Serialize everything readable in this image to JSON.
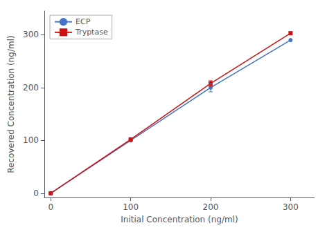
{
  "chart_data": {
    "type": "line",
    "xlabel": "Initial Concentration (ng/ml)",
    "ylabel": "Recovered Concentration (ng/ml)",
    "x": [
      0,
      100,
      200,
      300
    ],
    "series": [
      {
        "name": "ECP",
        "color": "#4472C4",
        "marker": "circle",
        "values": [
          0,
          100,
          200,
          290
        ],
        "yerr": [
          0,
          0,
          8,
          0
        ]
      },
      {
        "name": "Tryptase",
        "color": "#CC1111",
        "marker": "square",
        "values": [
          0,
          102,
          208,
          303
        ],
        "yerr": [
          0,
          0,
          5,
          0
        ]
      }
    ],
    "xlim": [
      -8,
      330
    ],
    "ylim": [
      -8,
      345
    ],
    "xticks": [
      0,
      100,
      200,
      300
    ],
    "yticks": [
      0,
      100,
      200,
      300
    ],
    "grid": false,
    "legend": "upper left"
  }
}
